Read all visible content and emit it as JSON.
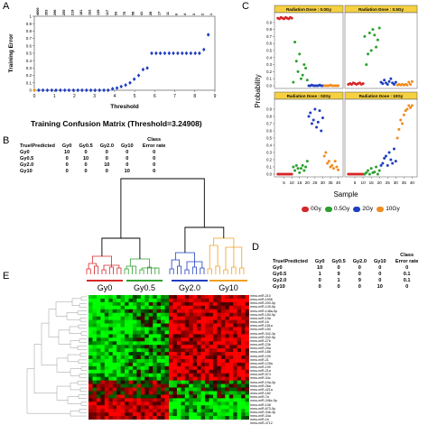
{
  "panels": {
    "a": "A",
    "b": "B",
    "c": "C",
    "d": "D",
    "e": "E"
  },
  "panel_b_title": "Training Confusion Matrix (Threshold=3.24908)",
  "confusion_b": {
    "header": [
      "True\\Predicted",
      "Gy0",
      "Gy0.5",
      "Gy2.0",
      "Gy10",
      "Class Error rate"
    ],
    "rows": [
      [
        "Gy0",
        "10",
        "0",
        "0",
        "0",
        "0"
      ],
      [
        "Gy0.5",
        "0",
        "10",
        "0",
        "0",
        "0"
      ],
      [
        "Gy2.0",
        "0",
        "0",
        "10",
        "0",
        "0"
      ],
      [
        "Gy10",
        "0",
        "0",
        "0",
        "10",
        "0"
      ]
    ]
  },
  "confusion_d": {
    "header": [
      "True\\Predicted",
      "Gy0",
      "Gy0.5",
      "Gy2.0",
      "Gy10",
      "Class Error rate"
    ],
    "rows": [
      [
        "Gy0",
        "10",
        "0",
        "0",
        "0",
        "0"
      ],
      [
        "Gy0.5",
        "1",
        "9",
        "0",
        "0",
        "0.1"
      ],
      [
        "Gy2.0",
        "0",
        "1",
        "9",
        "0",
        "0.1"
      ],
      [
        "Gy10",
        "0",
        "0",
        "0",
        "10",
        "0"
      ]
    ]
  },
  "legend_c": [
    {
      "label": "0Gy",
      "color": "#d62728"
    },
    {
      "label": "0.5Gy",
      "color": "#2ca02c"
    },
    {
      "label": "2Gy",
      "color": "#1f3fbf"
    },
    {
      "label": "10Gy",
      "color": "#f08c1e"
    }
  ],
  "groups_e": [
    {
      "label": "Gy0",
      "color": "#d62728"
    },
    {
      "label": "Gy0.5",
      "color": "#2ca02c"
    },
    {
      "label": "Gy2.0",
      "color": "#1f3fbf"
    },
    {
      "label": "Gy10",
      "color": "#f0a020"
    }
  ],
  "genes_e": [
    "mmu-miR-210",
    "mmu-miR-1906",
    "mmu-miR-200-5p",
    "mmu-miR-149-5p",
    "mmu-miR-148a-5p",
    "mmu-miR-150-5p",
    "mmu-miR-15a",
    "mmu-miR-16",
    "mmu-miR-181a",
    "mmu-miR-150",
    "mmu-miR-342-3p",
    "mmu-miR-342-5p",
    "mmu-miR-27b",
    "mmu-miR-23b",
    "mmu-miR-29a",
    "mmu-miR-186",
    "mmu-miR-155",
    "mmu-miR-21",
    "mmu-miR-125a",
    "mmu-miR-199",
    "mmu-miR-21a",
    "mmu-miR-574",
    "mmu-miR-34c",
    "mmu-miR-19a-3p",
    "mmu-miR-26a",
    "mmu-miR-421a",
    "mmu-miR-182",
    "mmu-miR-7a",
    "mmu-miR-346c-5p",
    "mmu-miR-106",
    "mmu-miR-673-5p",
    "mmu-miR-34b-3p",
    "mmu-miR-34a",
    "mmu-miR-1b",
    "mmu-miR-4712"
  ],
  "chart_data": [
    {
      "panel": "A",
      "type": "scatter",
      "xlabel": "Threshold",
      "ylabel": "Training Error",
      "xlim": [
        0,
        9
      ],
      "ylim": [
        0,
        1.0
      ],
      "x_ticks": [
        0,
        1,
        2,
        3,
        4,
        5,
        6,
        7,
        8,
        9
      ],
      "y_ticks": [
        "0",
        "0.1",
        "0.2",
        "0.3",
        "0.4",
        "0.5",
        "0.6",
        "0.7",
        "0.8",
        "0.9",
        "1"
      ],
      "top_labels": [
        "4000",
        "353",
        "290",
        "255",
        "219",
        "181",
        "162",
        "139",
        "117",
        "93",
        "75",
        "58",
        "41",
        "28",
        "17",
        "11",
        "6",
        "4",
        "3",
        "2",
        "1"
      ],
      "x": [
        0.0,
        0.22,
        0.43,
        0.65,
        0.87,
        1.08,
        1.3,
        1.52,
        1.73,
        1.95,
        2.17,
        2.38,
        2.6,
        2.82,
        3.03,
        3.25,
        3.47,
        3.68,
        3.9,
        4.12,
        4.33,
        4.55,
        4.77,
        4.98,
        5.2,
        5.42,
        5.63,
        5.85,
        6.07,
        6.28,
        6.5,
        6.72,
        6.93,
        7.15,
        7.37,
        7.58,
        7.8,
        8.02,
        8.23,
        8.45,
        8.67
      ],
      "values": [
        0.0,
        0.0,
        0.0,
        0.0,
        0.0,
        0.0,
        0.0,
        0.0,
        0.0,
        0.0,
        0.0,
        0.0,
        0.0,
        0.0,
        0.0,
        0.0,
        0.0,
        0.0,
        0.02,
        0.03,
        0.05,
        0.07,
        0.1,
        0.15,
        0.2,
        0.28,
        0.3,
        0.5,
        0.5,
        0.5,
        0.5,
        0.5,
        0.5,
        0.5,
        0.5,
        0.5,
        0.5,
        0.5,
        0.5,
        0.55,
        0.75
      ]
    },
    {
      "panel": "C",
      "type": "scatter",
      "xlabel": "Sample",
      "ylabel": "Probability",
      "xlim": [
        0,
        42
      ],
      "ylim": [
        0,
        1
      ],
      "x_ticks": [
        5,
        10,
        15,
        20,
        25,
        30,
        35,
        40
      ],
      "y_ticks": [
        "0.0",
        "0.1",
        "0.2",
        "0.3",
        "0.4",
        "0.5",
        "0.6",
        "0.7",
        "0.8",
        "0.9"
      ],
      "facets": [
        {
          "title": "Radiation Dose : 0.0Gy",
          "values": [
            0.96,
            0.95,
            0.97,
            0.96,
            0.95,
            0.97,
            0.96,
            0.95,
            0.97,
            0.96,
            0.05,
            0.62,
            0.35,
            0.2,
            0.45,
            0.1,
            0.15,
            0.3,
            0.25,
            0.08,
            0.0,
            0.0,
            0.01,
            0.0,
            0.0,
            0.0,
            0.0,
            0.01,
            0.0,
            0.0,
            0.0,
            0.0,
            0.0,
            0.0,
            0.01,
            0.0,
            0.0,
            0.0,
            0.0,
            0.0
          ]
        },
        {
          "title": "Radiation Dose : 0.5Gy",
          "values": [
            0.02,
            0.03,
            0.02,
            0.04,
            0.03,
            0.02,
            0.03,
            0.04,
            0.02,
            0.03,
            0.7,
            0.3,
            0.45,
            0.75,
            0.5,
            0.8,
            0.72,
            0.55,
            0.65,
            0.82,
            0.05,
            0.03,
            0.08,
            0.04,
            0.02,
            0.06,
            0.1,
            0.04,
            0.02,
            0.05,
            0.01,
            0.02,
            0.01,
            0.02,
            0.01,
            0.02,
            0.01,
            0.05,
            0.02,
            0.06
          ]
        },
        {
          "title": "Radiation Dose : 02Gy",
          "values": [
            0.0,
            0.0,
            0.0,
            0.0,
            0.0,
            0.0,
            0.0,
            0.0,
            0.0,
            0.0,
            0.1,
            0.05,
            0.12,
            0.08,
            0.02,
            0.08,
            0.12,
            0.05,
            0.1,
            0.18,
            0.8,
            0.85,
            0.7,
            0.75,
            0.9,
            0.65,
            0.72,
            0.88,
            0.6,
            0.78,
            0.25,
            0.3,
            0.15,
            0.18,
            0.1,
            0.12,
            0.08,
            0.18,
            0.1,
            0.06
          ]
        },
        {
          "title": "Radiation Dose : 10Gy",
          "values": [
            0.0,
            0.0,
            0.0,
            0.0,
            0.0,
            0.0,
            0.0,
            0.0,
            0.0,
            0.0,
            0.0,
            0.02,
            0.05,
            0.0,
            0.08,
            0.02,
            0.03,
            0.1,
            0.0,
            0.05,
            0.12,
            0.15,
            0.22,
            0.25,
            0.12,
            0.3,
            0.2,
            0.15,
            0.35,
            0.18,
            0.5,
            0.62,
            0.75,
            0.7,
            0.82,
            0.88,
            0.9,
            0.95,
            0.92,
            0.95
          ]
        }
      ],
      "series_colors": [
        "#d62728",
        "#2ca02c",
        "#1f3fbf",
        "#f08c1e"
      ]
    }
  ]
}
